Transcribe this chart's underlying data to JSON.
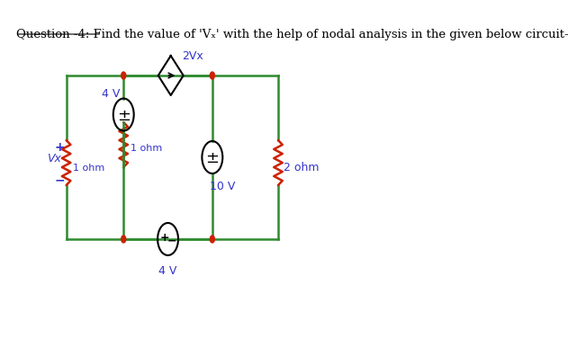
{
  "title": "Question -4: Find the value of ‘Vₙ’ with the help of nodal analysis in the given below circuit-",
  "bg_color": "#ffffff",
  "circuit_line_color": "#2e8b2e",
  "resistor_color": "#cc2200",
  "source_circle_color": "#000000",
  "source_text_color": "#3333cc",
  "node_color": "#cc2200",
  "label_color": "#3333cc",
  "title_color": "#000000",
  "title_underline": true,
  "title_fontsize": 9.5,
  "circuit_lw": 1.8,
  "resistor_lw": 1.8,
  "source_r": 0.18,
  "diamond_size": 0.18
}
